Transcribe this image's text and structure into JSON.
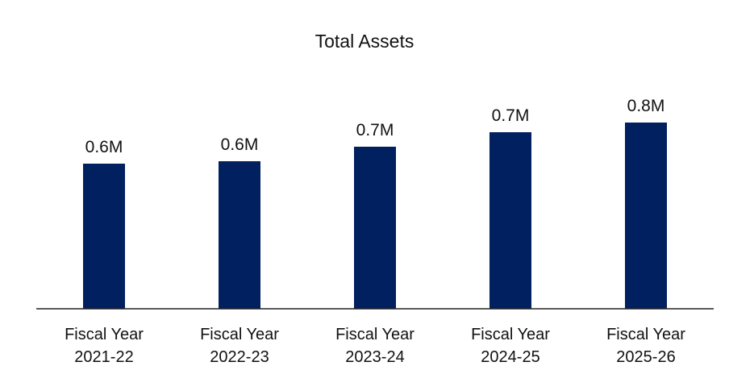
{
  "chart_data": {
    "type": "bar",
    "title": "Total Assets",
    "categories": [
      "Fiscal Year\n2021-22",
      "Fiscal Year\n2022-23",
      "Fiscal Year\n2023-24",
      "Fiscal Year\n2024-25",
      "Fiscal Year\n2025-26"
    ],
    "values": [
      0.6,
      0.61,
      0.67,
      0.73,
      0.77
    ],
    "value_labels": [
      "0.6M",
      "0.6M",
      "0.7M",
      "0.7M",
      "0.8M"
    ],
    "color": "#002060",
    "ylim": [
      0,
      1
    ]
  }
}
